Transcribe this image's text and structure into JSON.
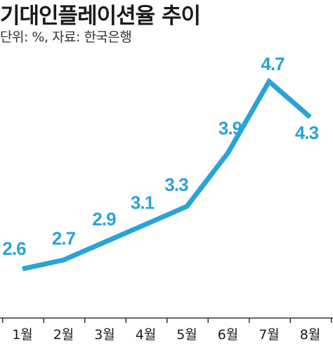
{
  "header": {
    "title": "기대인플레이션율 추이",
    "subtitle_label": "단위: %, 자료:",
    "subtitle_value": "한국은행"
  },
  "colors": {
    "line": "#2aa3d8",
    "label": "#2aa3d8",
    "axis": "#333333",
    "text": "#1a1a1a"
  },
  "chart_data": {
    "type": "line",
    "title": "기대인플레이션율 추이",
    "subtitle": "단위: %, 자료: 한국은행",
    "categories": [
      "1월",
      "2월",
      "3월",
      "4월",
      "5월",
      "6월",
      "7월",
      "8월"
    ],
    "values": [
      2.6,
      2.7,
      2.9,
      3.1,
      3.3,
      3.9,
      4.7,
      4.3
    ],
    "data_labels": [
      "2.6",
      "2.7",
      "2.9",
      "3.1",
      "3.3",
      "3.9",
      "4.7",
      "4.3"
    ],
    "xlabel": "",
    "ylabel": "",
    "grid": false,
    "legend": "none"
  }
}
